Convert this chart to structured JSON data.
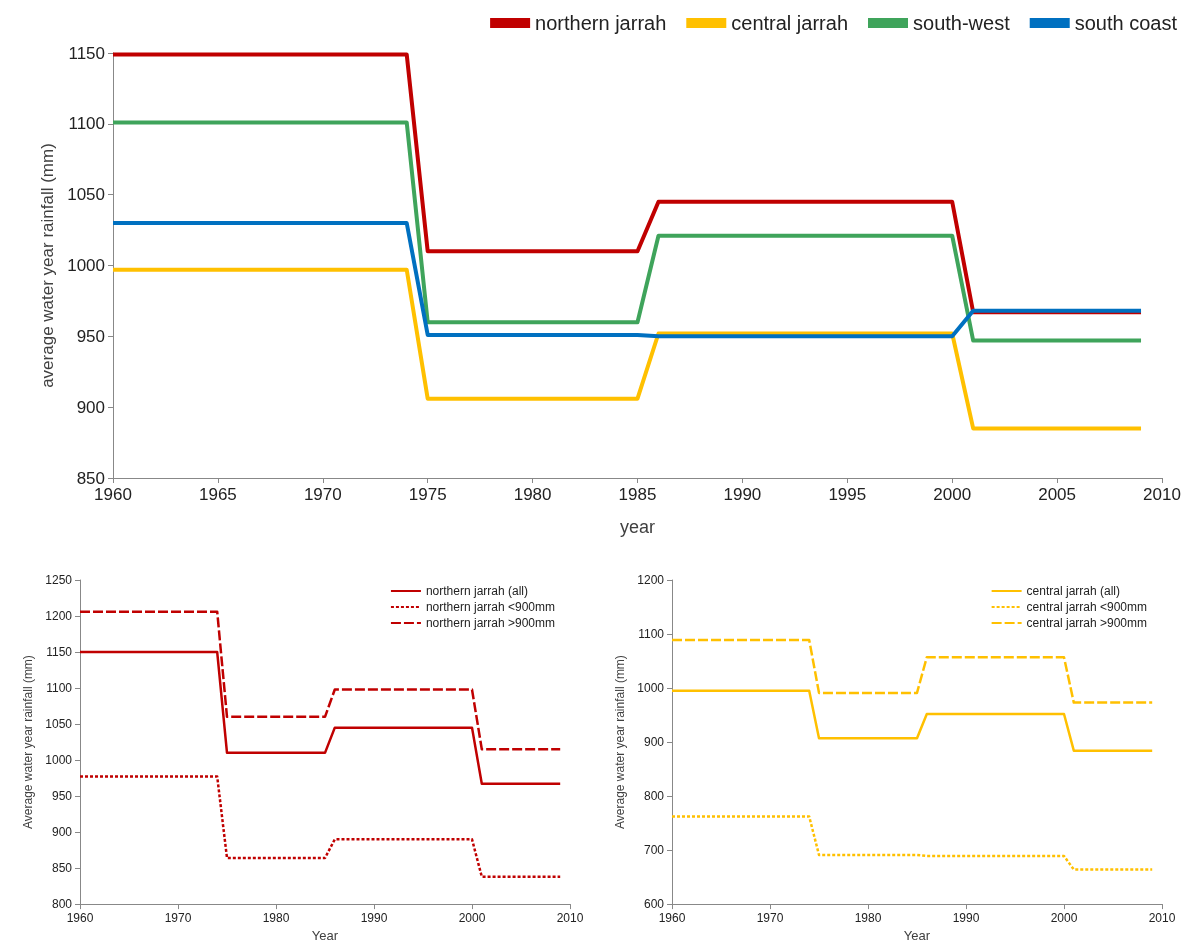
{
  "chart_data": [
    {
      "type": "line",
      "xlabel": "year",
      "ylabel": "average water year rainfall (mm)",
      "xlim": [
        1960,
        2010
      ],
      "xticks": [
        1960,
        1965,
        1970,
        1975,
        1980,
        1985,
        1990,
        1995,
        2000,
        2005,
        2010
      ],
      "ylim": [
        850,
        1150
      ],
      "yticks": [
        850,
        900,
        950,
        1000,
        1050,
        1100,
        1150
      ],
      "grid": false,
      "legend": "top right",
      "marker": "none",
      "x": [
        1960,
        1974,
        1975,
        1985,
        1986,
        2000,
        2001,
        2009
      ],
      "series": [
        {
          "name": "northern jarrah",
          "color": "#c00000",
          "line_style": "solid",
          "values": [
            1149,
            1149,
            1010,
            1010,
            1045,
            1045,
            967,
            967
          ]
        },
        {
          "name": "central jarrah",
          "color": "#ffc000",
          "line_style": "solid",
          "values": [
            997,
            997,
            906,
            906,
            952,
            952,
            885,
            885
          ]
        },
        {
          "name": "south-west",
          "color": "#3fa45b",
          "line_style": "solid",
          "values": [
            1101,
            1101,
            960,
            960,
            1021,
            1021,
            947,
            947
          ]
        },
        {
          "name": "south coast",
          "color": "#0070c0",
          "line_style": "solid",
          "values": [
            1030,
            1030,
            951,
            951,
            950,
            950,
            968,
            968
          ]
        }
      ]
    },
    {
      "type": "line",
      "xlabel": "Year",
      "ylabel": "Average water year rainfall (mm)",
      "xlim": [
        1960,
        2010
      ],
      "xticks": [
        1960,
        1970,
        1980,
        1990,
        2000,
        2010
      ],
      "ylim": [
        800,
        1250
      ],
      "yticks": [
        800,
        850,
        900,
        950,
        1000,
        1050,
        1100,
        1150,
        1200,
        1250
      ],
      "grid": false,
      "legend": "top right",
      "marker": "none",
      "x": [
        1960,
        1974,
        1975,
        1985,
        1986,
        2000,
        2001,
        2009
      ],
      "series": [
        {
          "name": "northern jarrah (all)",
          "color": "#c00000",
          "line_style": "solid",
          "values": [
            1150,
            1150,
            1010,
            1010,
            1045,
            1045,
            967,
            967
          ]
        },
        {
          "name": "northern jarrah <900mm",
          "color": "#c00000",
          "line_style": "dotted",
          "values": [
            977,
            977,
            864,
            864,
            890,
            890,
            838,
            838
          ]
        },
        {
          "name": "northern jarrah >900mm",
          "color": "#c00000",
          "line_style": "dashed",
          "values": [
            1206,
            1206,
            1060,
            1060,
            1098,
            1098,
            1015,
            1015
          ]
        }
      ]
    },
    {
      "type": "line",
      "xlabel": "Year",
      "ylabel": "Average water year rainfall (mm)",
      "xlim": [
        1960,
        2010
      ],
      "xticks": [
        1960,
        1970,
        1980,
        1990,
        2000,
        2010
      ],
      "ylim": [
        600,
        1200
      ],
      "yticks": [
        600,
        700,
        800,
        900,
        1000,
        1100,
        1200
      ],
      "grid": false,
      "legend": "top right",
      "marker": "none",
      "x": [
        1960,
        1974,
        1975,
        1985,
        1986,
        2000,
        2001,
        2009
      ],
      "series": [
        {
          "name": "central jarrah (all)",
          "color": "#ffc000",
          "line_style": "solid",
          "values": [
            995,
            995,
            907,
            907,
            952,
            952,
            884,
            884
          ]
        },
        {
          "name": "central jarrah <900mm",
          "color": "#ffc000",
          "line_style": "dotted",
          "values": [
            762,
            762,
            691,
            691,
            689,
            689,
            664,
            664
          ]
        },
        {
          "name": "central jarrah >900mm",
          "color": "#ffc000",
          "line_style": "dashed",
          "values": [
            1089,
            1089,
            991,
            991,
            1057,
            1057,
            973,
            973
          ]
        }
      ]
    }
  ]
}
